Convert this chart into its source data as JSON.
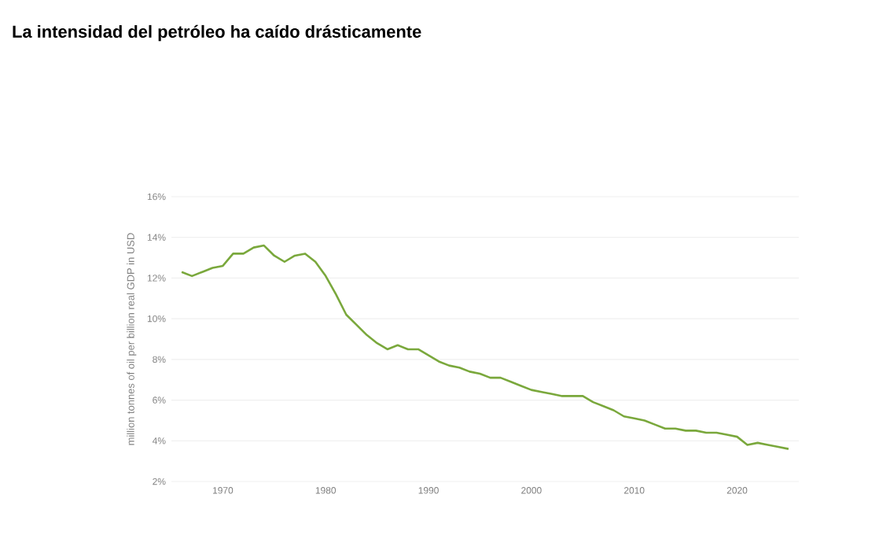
{
  "chart_data": {
    "type": "line",
    "title": "La intensidad del petróleo ha caído drásticamente",
    "ylabel": "million tonnes of oil per billion real GDP in USD",
    "x": [
      1966,
      1967,
      1968,
      1969,
      1970,
      1971,
      1972,
      1973,
      1974,
      1975,
      1976,
      1977,
      1978,
      1979,
      1980,
      1981,
      1982,
      1983,
      1984,
      1985,
      1986,
      1987,
      1988,
      1989,
      1990,
      1991,
      1992,
      1993,
      1994,
      1995,
      1996,
      1997,
      1998,
      1999,
      2000,
      2001,
      2002,
      2003,
      2004,
      2005,
      2006,
      2007,
      2008,
      2009,
      2010,
      2011,
      2012,
      2013,
      2014,
      2015,
      2016,
      2017,
      2018,
      2019,
      2020,
      2021,
      2022,
      2023,
      2024,
      2025
    ],
    "series": [
      {
        "color": "#7aa83c",
        "values": [
          12.3,
          12.1,
          12.3,
          12.5,
          12.6,
          13.2,
          13.2,
          13.5,
          13.6,
          13.1,
          12.8,
          13.1,
          13.2,
          12.8,
          12.1,
          11.2,
          10.2,
          9.7,
          9.2,
          8.8,
          8.5,
          8.7,
          8.5,
          8.5,
          8.2,
          7.9,
          7.7,
          7.6,
          7.4,
          7.3,
          7.1,
          7.1,
          6.9,
          6.7,
          6.5,
          6.4,
          6.3,
          6.2,
          6.2,
          6.2,
          5.9,
          5.7,
          5.5,
          5.2,
          5.1,
          5.0,
          4.8,
          4.6,
          4.6,
          4.5,
          4.5,
          4.4,
          4.4,
          4.3,
          4.2,
          3.8,
          3.9,
          3.8,
          3.7,
          3.6
        ]
      }
    ],
    "xlim": [
      1965,
      2026
    ],
    "ylim": [
      2,
      16
    ],
    "xticks": [
      1970,
      1980,
      1990,
      2000,
      2010,
      2020
    ],
    "yticks": [
      {
        "value": 2,
        "label": "2%"
      },
      {
        "value": 4,
        "label": "4%"
      },
      {
        "value": 6,
        "label": "6%"
      },
      {
        "value": 8,
        "label": "8%"
      },
      {
        "value": 10,
        "label": "10%"
      },
      {
        "value": 12,
        "label": "12%"
      },
      {
        "value": 14,
        "label": "14%"
      },
      {
        "value": 16,
        "label": "16%"
      }
    ],
    "grid": "y",
    "marker": "none",
    "line_style": "solid"
  }
}
